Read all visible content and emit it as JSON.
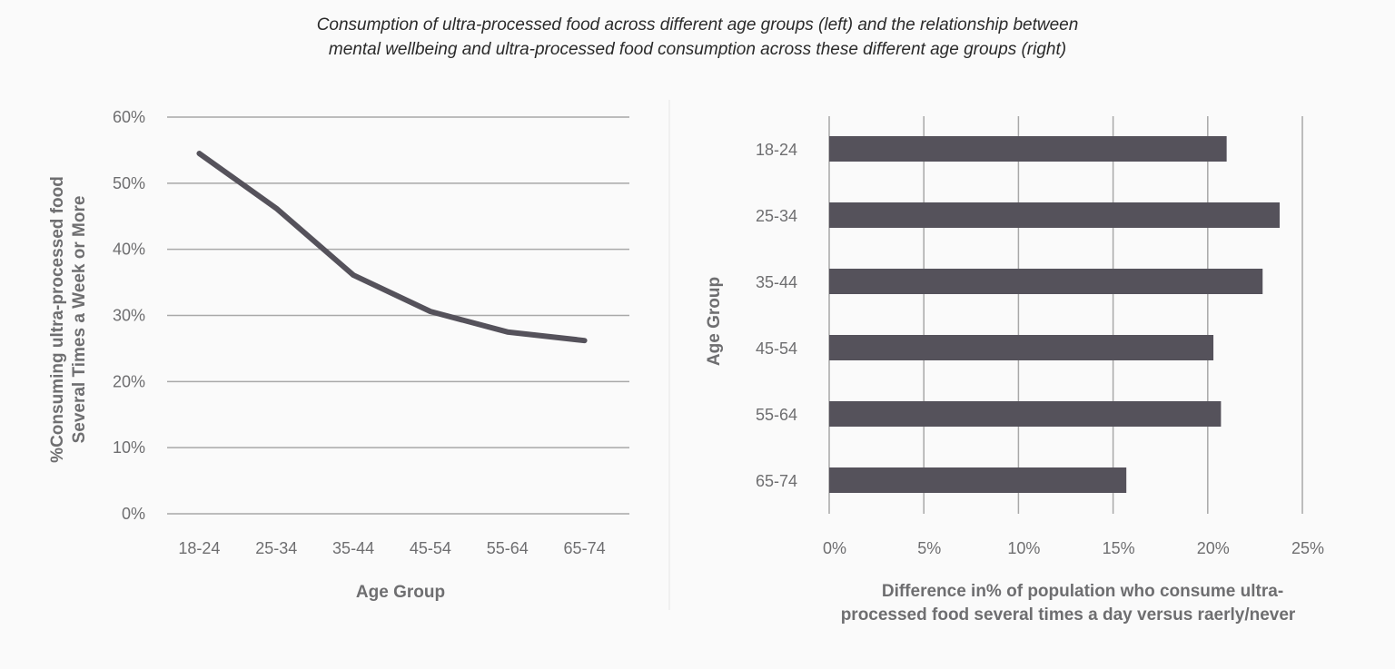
{
  "title_line1": "Consumption of ultra-processed food across different age groups (left) and the relationship between",
  "title_line2": "mental wellbeing and ultra-processed food consumption across these different age groups (right)",
  "colors": {
    "series": "#55525b",
    "grid": "#a8a8a8",
    "background": "#fafafa",
    "text": "#6e6e70"
  },
  "chart_data": [
    {
      "type": "line",
      "categories": [
        "18-24",
        "25-34",
        "35-44",
        "45-54",
        "55-64",
        "65-74"
      ],
      "values": [
        54.5,
        46.2,
        36.1,
        30.6,
        27.5,
        26.2
      ],
      "xlabel": "Age Group",
      "ylabel_line1": "%Consuming ultra-processed food",
      "ylabel_line2": "Several Times a Week or More",
      "ylim": [
        0,
        60
      ],
      "yticks": [
        "0%",
        "10%",
        "20%",
        "30%",
        "40%",
        "50%",
        "60%"
      ],
      "grid": "horizontal"
    },
    {
      "type": "bar",
      "orientation": "horizontal",
      "categories": [
        "18-24",
        "25-34",
        "35-44",
        "45-54",
        "55-64",
        "65-74"
      ],
      "values": [
        21.0,
        23.8,
        22.9,
        20.3,
        20.7,
        15.7
      ],
      "ylabel": "Age Group",
      "xlabel_line1": "Difference in% of population who consume ultra-",
      "xlabel_line2": "processed food several times a day versus raerly/never",
      "xlim": [
        0,
        25
      ],
      "xticks": [
        "0%",
        "5%",
        "10%",
        "15%",
        "20%",
        "25%"
      ],
      "grid": "vertical"
    }
  ]
}
